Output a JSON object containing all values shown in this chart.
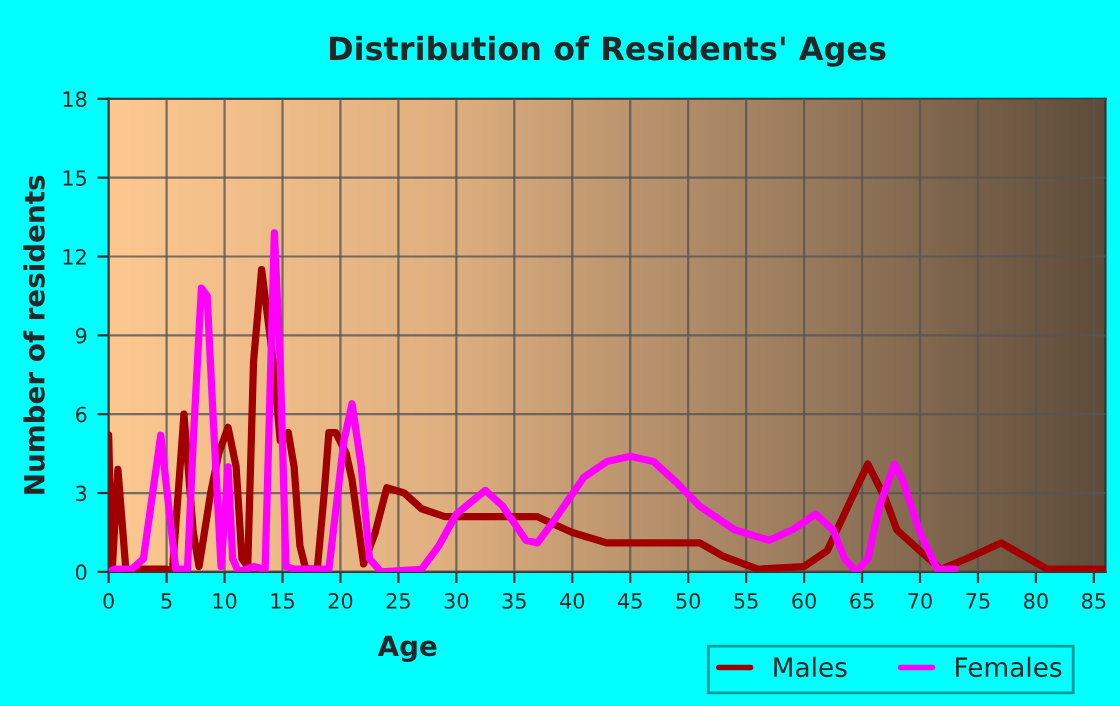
{
  "chart_data": {
    "type": "line",
    "title": "Distribution of Residents' Ages",
    "xlabel": "Age",
    "ylabel": "Number of residents",
    "xlim": [
      0,
      86
    ],
    "xticks": [
      0,
      5,
      10,
      15,
      20,
      25,
      30,
      35,
      40,
      45,
      50,
      55,
      60,
      65,
      70,
      75,
      80,
      85
    ],
    "ylim": [
      0,
      18
    ],
    "yticks": [
      0,
      3,
      6,
      9,
      12,
      15,
      18
    ],
    "grid": true,
    "legend": "bottom right",
    "marker": "none",
    "line_style": "solid",
    "series": [
      {
        "name": "Males",
        "color": "#a00000",
        "x": [
          0,
          0.3,
          0.8,
          1.5,
          2.5,
          5,
          5.5,
          6.5,
          7.3,
          7.8,
          8.8,
          9.5,
          10.3,
          11,
          11.5,
          12,
          12.5,
          13.2,
          14.2,
          14.8,
          15.5,
          16,
          16.5,
          17,
          18,
          18.6,
          19,
          19.6,
          20.5,
          21,
          22,
          23,
          24,
          25.5,
          27,
          29,
          33,
          37,
          40,
          43,
          48,
          51,
          53,
          56,
          60,
          62,
          64,
          65.5,
          67,
          68,
          70,
          71.8,
          74,
          77,
          79,
          81,
          86
        ],
        "values": [
          5.2,
          0,
          3.9,
          0,
          0.1,
          0.1,
          0,
          6,
          1.5,
          0.2,
          3,
          4.5,
          5.5,
          4,
          0.5,
          0.2,
          8,
          11.5,
          8,
          5,
          5.3,
          4,
          1,
          0.1,
          0.1,
          3,
          5.3,
          5.3,
          4.5,
          3.5,
          0.3,
          1.5,
          3.2,
          3,
          2.4,
          2.1,
          2.1,
          2.1,
          1.5,
          1.1,
          1.1,
          1.1,
          0.6,
          0.1,
          0.2,
          0.8,
          2.7,
          4.1,
          2.8,
          1.6,
          0.8,
          0.1,
          0.5,
          1.1,
          0.6,
          0.1,
          0.1
        ]
      },
      {
        "name": "Females",
        "color": "#ff00ff",
        "x": [
          0,
          0.5,
          2,
          3,
          4.5,
          5.3,
          5.8,
          6.8,
          7.3,
          8,
          8.5,
          9,
          9.7,
          10,
          10.3,
          10.7,
          11.2,
          12.5,
          13.5,
          14.3,
          14.8,
          15.3,
          16,
          19,
          20.3,
          21,
          21.8,
          22.5,
          23.5,
          27,
          28.5,
          30,
          32.5,
          34,
          36,
          37,
          38.5,
          41,
          43,
          45,
          47,
          49,
          51,
          54,
          57,
          59,
          61,
          62.5,
          63.5,
          64.5,
          65.5,
          66.5,
          67.8,
          68.5,
          70,
          71.5,
          73
        ],
        "values": [
          0,
          0.1,
          0.1,
          0.5,
          5.2,
          2,
          0.1,
          0.1,
          5,
          10.8,
          10.5,
          6,
          0.2,
          2,
          4,
          0.5,
          0,
          0.2,
          0.1,
          12.9,
          8,
          0.2,
          0.1,
          0.1,
          5,
          6.4,
          4,
          0.5,
          0,
          0.1,
          1,
          2.2,
          3.1,
          2.5,
          1.2,
          1.1,
          2,
          3.6,
          4.2,
          4.4,
          4.2,
          3.4,
          2.5,
          1.6,
          1.2,
          1.6,
          2.2,
          1.6,
          0.5,
          0,
          0.5,
          2.5,
          4.1,
          3.5,
          1.5,
          0.1,
          0.1
        ]
      }
    ]
  }
}
